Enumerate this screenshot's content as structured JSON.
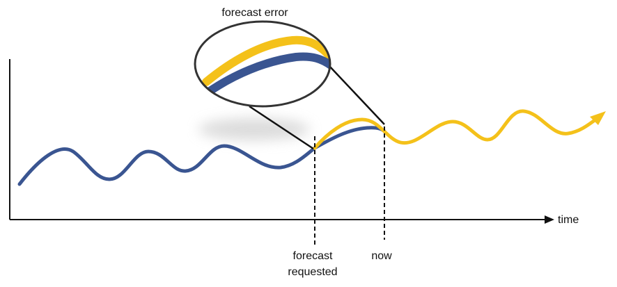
{
  "callout": {
    "title": "forecast error"
  },
  "axis": {
    "x_label": "time"
  },
  "markers": {
    "forecast_requested_line1": "forecast",
    "forecast_requested_line2": "requested",
    "now": "now"
  },
  "colors": {
    "observed": "#3a5591",
    "forecast": "#f4c11a",
    "axis": "#111111",
    "shadow": "#d9d9d9"
  },
  "icons": {
    "forecast_arrowhead": "arrow-right-head",
    "axis_arrowhead": "arrow-right-head"
  }
}
